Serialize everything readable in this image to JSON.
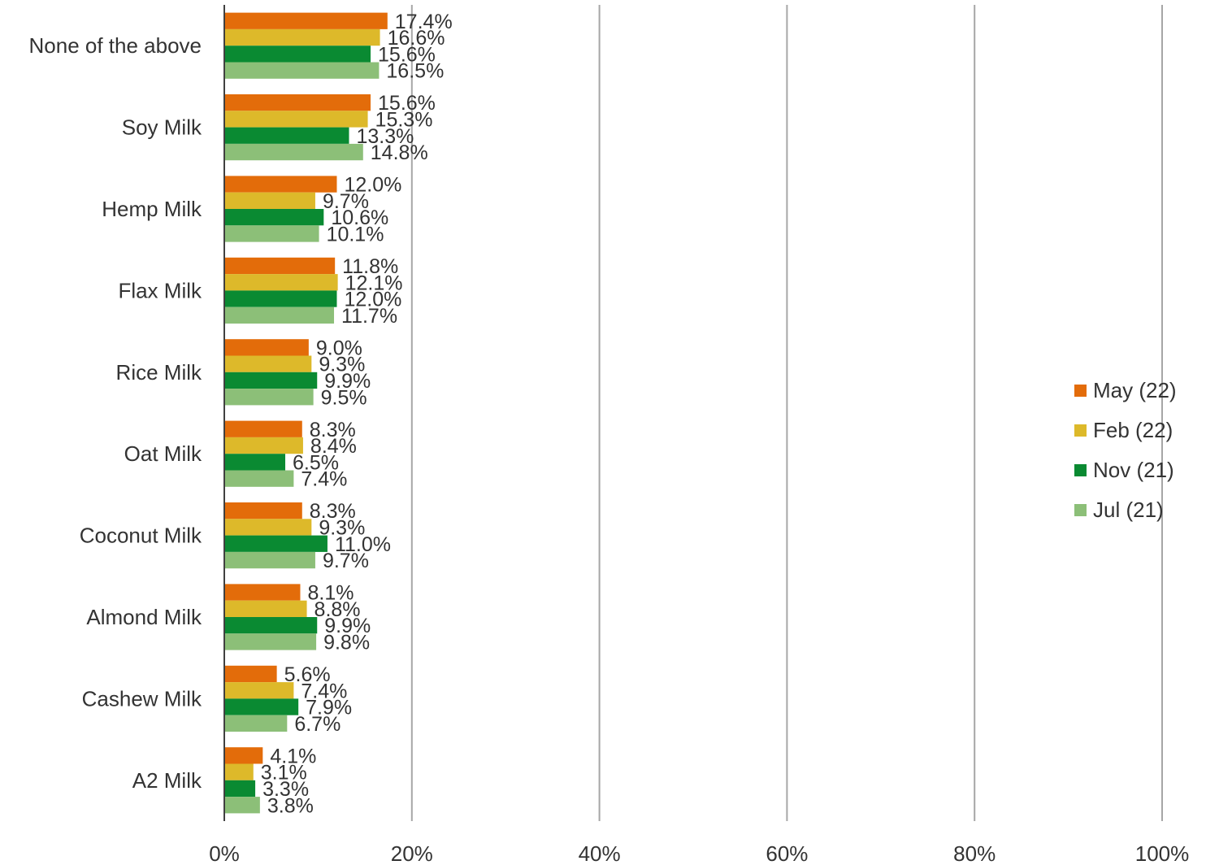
{
  "chart_data": {
    "type": "bar",
    "orientation": "horizontal",
    "categories": [
      "None of the above",
      "Soy Milk",
      "Hemp Milk",
      "Flax Milk",
      "Rice Milk",
      "Oat Milk",
      "Coconut Milk",
      "Almond Milk",
      "Cashew Milk",
      "A2 Milk"
    ],
    "series": [
      {
        "name": "May (22)",
        "color": "#E36C0A",
        "values": [
          17.4,
          15.6,
          12.0,
          11.8,
          9.0,
          8.3,
          8.3,
          8.1,
          5.6,
          4.1
        ],
        "labels": [
          "17.4%",
          "15.6%",
          "12.0%",
          "11.8%",
          "9.0%",
          "8.3%",
          "8.3%",
          "8.1%",
          "5.6%",
          "4.1%"
        ]
      },
      {
        "name": "Feb (22)",
        "color": "#DDB92A",
        "values": [
          16.6,
          15.3,
          9.7,
          12.1,
          9.3,
          8.4,
          9.3,
          8.8,
          7.4,
          3.1
        ],
        "labels": [
          "16.6%",
          "15.3%",
          "9.7%",
          "12.1%",
          "9.3%",
          "8.4%",
          "9.3%",
          "8.8%",
          "7.4%",
          "3.1%"
        ]
      },
      {
        "name": "Nov (21)",
        "color": "#0A8A32",
        "values": [
          15.6,
          13.3,
          10.6,
          12.0,
          9.9,
          6.5,
          11.0,
          9.9,
          7.9,
          3.3
        ],
        "labels": [
          "15.6%",
          "13.3%",
          "10.6%",
          "12.0%",
          "9.9%",
          "6.5%",
          "11.0%",
          "9.9%",
          "7.9%",
          "3.3%"
        ]
      },
      {
        "name": "Jul (21)",
        "color": "#8CBF78",
        "values": [
          16.5,
          14.8,
          10.1,
          11.7,
          9.5,
          7.4,
          9.7,
          9.8,
          6.7,
          3.8
        ],
        "labels": [
          "16.5%",
          "14.8%",
          "10.1%",
          "11.7%",
          "9.5%",
          "7.4%",
          "9.7%",
          "9.8%",
          "6.7%",
          "3.8%"
        ]
      }
    ],
    "xlim": [
      0,
      100
    ],
    "xticks": [
      "0%",
      "20%",
      "40%",
      "60%",
      "80%",
      "100%"
    ],
    "grid": true,
    "legend_position": "right"
  }
}
